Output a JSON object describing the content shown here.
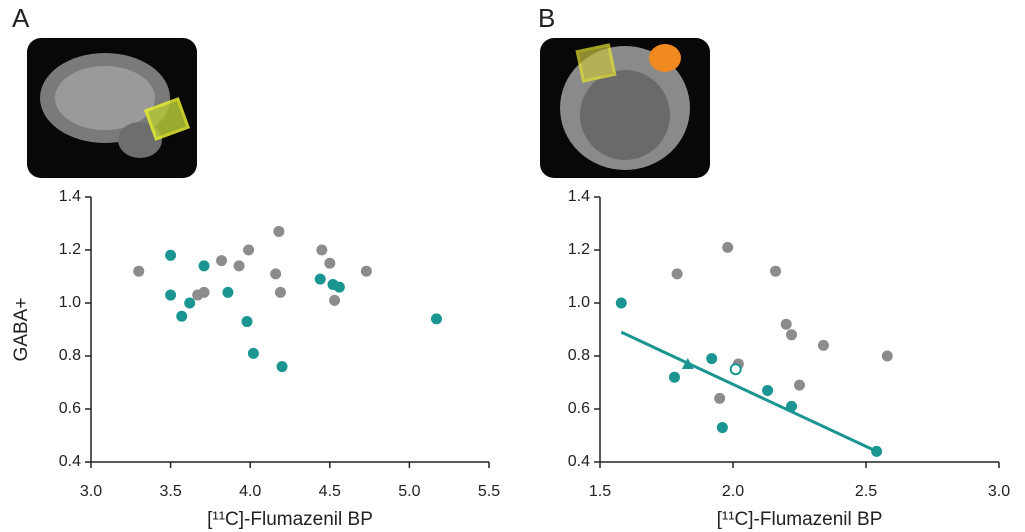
{
  "chart_data": [
    {
      "type": "scatter",
      "panel": "A",
      "xlabel": "[¹¹C]-Flumazenil BP",
      "ylabel": "GABA+",
      "xlim": [
        3.0,
        5.5
      ],
      "xticks": [
        {
          "value": 3,
          "label": "3.0"
        },
        3.5,
        {
          "value": 4,
          "label": "4.0"
        },
        4.5,
        {
          "value": 5,
          "label": "5.0"
        },
        5.5
      ],
      "ylim": [
        0.4,
        1.4
      ],
      "yticks": [
        0.4,
        0.6,
        0.8,
        {
          "value": 1,
          "label": "1.0"
        },
        1.2,
        1.4
      ],
      "series": [
        {
          "color": "#8c8c8c",
          "marker": "circle",
          "x": [
            3.3,
            3.67,
            3.71,
            3.82,
            3.93,
            3.99,
            4.18,
            4.16,
            4.19,
            4.45,
            4.5,
            4.73,
            4.53
          ],
          "values": [
            1.12,
            1.03,
            1.04,
            1.16,
            1.14,
            1.2,
            1.27,
            1.11,
            1.04,
            1.2,
            1.15,
            1.12,
            1.01
          ]
        },
        {
          "color": "#1a9591",
          "marker": "circle",
          "x": [
            3.5,
            3.5,
            3.57,
            3.62,
            3.71,
            3.86,
            3.98,
            4.02,
            4.2,
            4.44,
            4.52,
            4.56,
            5.17
          ],
          "values": [
            1.18,
            1.03,
            0.95,
            1.0,
            1.14,
            1.04,
            0.93,
            0.81,
            0.76,
            1.09,
            1.07,
            1.06,
            0.94
          ]
        }
      ]
    },
    {
      "type": "scatter",
      "panel": "B",
      "xlabel": "[¹¹C]-Flumazenil BP",
      "xlim": [
        1.5,
        3.0
      ],
      "xticks": [
        1.5,
        {
          "value": 2,
          "label": "2.0"
        },
        2.5,
        {
          "value": 3,
          "label": "3.0"
        }
      ],
      "ylim": [
        0.4,
        1.4
      ],
      "yticks": [
        0.4,
        0.6,
        0.8,
        {
          "value": 1,
          "label": "1.0"
        },
        1.2,
        1.4
      ],
      "series": [
        {
          "color": "#8c8c8c",
          "marker": "circle",
          "x": [
            1.98,
            1.79,
            2.16,
            2.2,
            2.22,
            2.34,
            2.58,
            2.02,
            1.95,
            2.25
          ],
          "values": [
            1.21,
            1.11,
            1.12,
            0.92,
            0.88,
            0.84,
            0.8,
            0.77,
            0.64,
            0.69
          ]
        },
        {
          "color": "#1a9591",
          "marker": "circle",
          "x": [
            1.58,
            1.78,
            1.92,
            1.96,
            2.13,
            2.22,
            2.54
          ],
          "values": [
            1.0,
            0.72,
            0.79,
            0.53,
            0.67,
            0.61,
            0.44
          ]
        },
        {
          "color": "#1a9591",
          "marker": "open-circle",
          "x": [
            2.01
          ],
          "values": [
            0.75
          ]
        },
        {
          "color": "#1a9591",
          "marker": "triangle",
          "x": [
            1.83
          ],
          "values": [
            0.77
          ]
        }
      ],
      "fit": {
        "color": "#1a9591",
        "x": [
          1.58,
          2.54
        ],
        "values": [
          0.89,
          0.44
        ]
      }
    }
  ]
}
